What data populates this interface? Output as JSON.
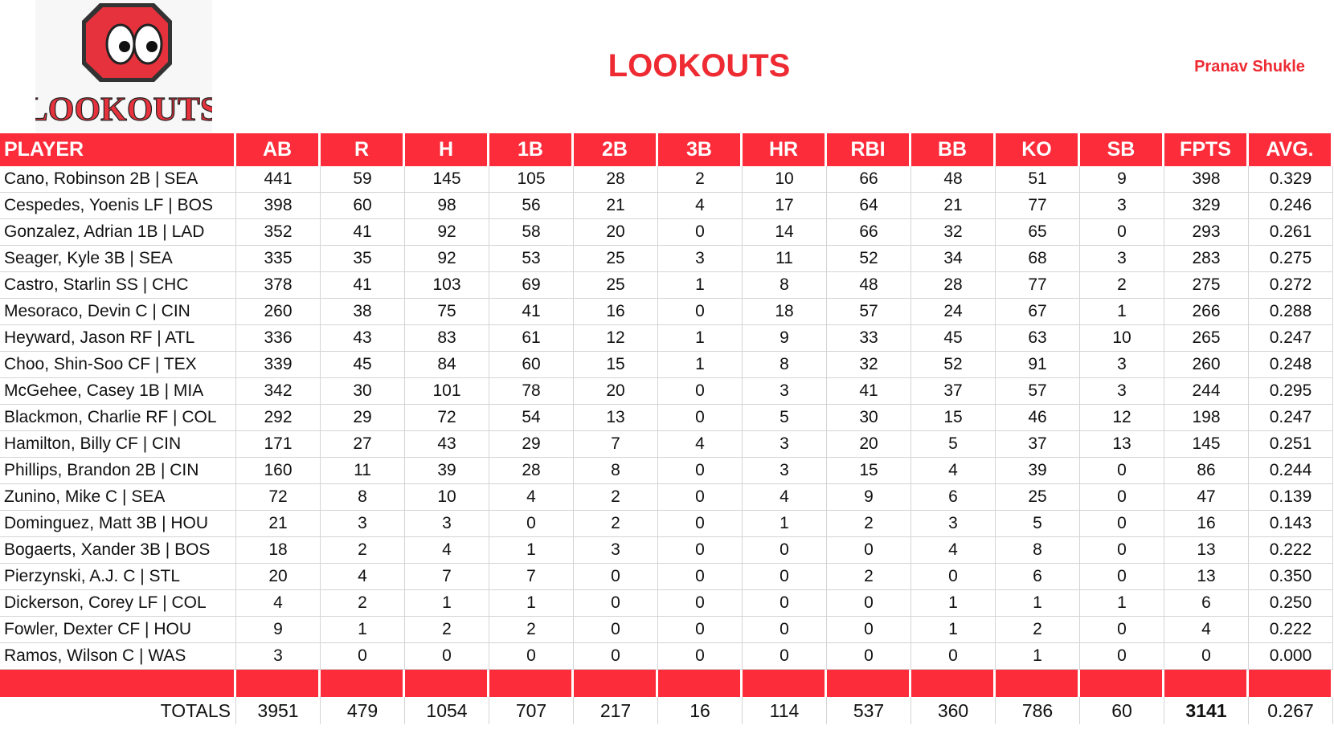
{
  "logo": {
    "text": "LOOKOUTS"
  },
  "header": {
    "title": "LOOKOUTS",
    "author": "Pranav Shukle"
  },
  "table": {
    "columns": [
      "PLAYER",
      "AB",
      "R",
      "H",
      "1B",
      "2B",
      "3B",
      "HR",
      "RBI",
      "BB",
      "KO",
      "SB",
      "FPTS",
      "AVG."
    ],
    "rows": [
      [
        "Cano, Robinson 2B | SEA",
        "441",
        "59",
        "145",
        "105",
        "28",
        "2",
        "10",
        "66",
        "48",
        "51",
        "9",
        "398",
        "0.329"
      ],
      [
        "Cespedes, Yoenis LF | BOS",
        "398",
        "60",
        "98",
        "56",
        "21",
        "4",
        "17",
        "64",
        "21",
        "77",
        "3",
        "329",
        "0.246"
      ],
      [
        "Gonzalez, Adrian 1B | LAD",
        "352",
        "41",
        "92",
        "58",
        "20",
        "0",
        "14",
        "66",
        "32",
        "65",
        "0",
        "293",
        "0.261"
      ],
      [
        "Seager, Kyle 3B | SEA",
        "335",
        "35",
        "92",
        "53",
        "25",
        "3",
        "11",
        "52",
        "34",
        "68",
        "3",
        "283",
        "0.275"
      ],
      [
        "Castro, Starlin SS | CHC",
        "378",
        "41",
        "103",
        "69",
        "25",
        "1",
        "8",
        "48",
        "28",
        "77",
        "2",
        "275",
        "0.272"
      ],
      [
        "Mesoraco, Devin C | CIN",
        "260",
        "38",
        "75",
        "41",
        "16",
        "0",
        "18",
        "57",
        "24",
        "67",
        "1",
        "266",
        "0.288"
      ],
      [
        "Heyward, Jason RF | ATL",
        "336",
        "43",
        "83",
        "61",
        "12",
        "1",
        "9",
        "33",
        "45",
        "63",
        "10",
        "265",
        "0.247"
      ],
      [
        "Choo, Shin-Soo CF | TEX",
        "339",
        "45",
        "84",
        "60",
        "15",
        "1",
        "8",
        "32",
        "52",
        "91",
        "3",
        "260",
        "0.248"
      ],
      [
        "McGehee, Casey 1B | MIA",
        "342",
        "30",
        "101",
        "78",
        "20",
        "0",
        "3",
        "41",
        "37",
        "57",
        "3",
        "244",
        "0.295"
      ],
      [
        "Blackmon, Charlie RF | COL",
        "292",
        "29",
        "72",
        "54",
        "13",
        "0",
        "5",
        "30",
        "15",
        "46",
        "12",
        "198",
        "0.247"
      ],
      [
        "Hamilton, Billy CF | CIN",
        "171",
        "27",
        "43",
        "29",
        "7",
        "4",
        "3",
        "20",
        "5",
        "37",
        "13",
        "145",
        "0.251"
      ],
      [
        "Phillips, Brandon 2B | CIN",
        "160",
        "11",
        "39",
        "28",
        "8",
        "0",
        "3",
        "15",
        "4",
        "39",
        "0",
        "86",
        "0.244"
      ],
      [
        "Zunino, Mike C | SEA",
        "72",
        "8",
        "10",
        "4",
        "2",
        "0",
        "4",
        "9",
        "6",
        "25",
        "0",
        "47",
        "0.139"
      ],
      [
        "Dominguez, Matt 3B | HOU",
        "21",
        "3",
        "3",
        "0",
        "2",
        "0",
        "1",
        "2",
        "3",
        "5",
        "0",
        "16",
        "0.143"
      ],
      [
        "Bogaerts, Xander 3B | BOS",
        "18",
        "2",
        "4",
        "1",
        "3",
        "0",
        "0",
        "0",
        "4",
        "8",
        "0",
        "13",
        "0.222"
      ],
      [
        "Pierzynski, A.J. C | STL",
        "20",
        "4",
        "7",
        "7",
        "0",
        "0",
        "0",
        "2",
        "0",
        "6",
        "0",
        "13",
        "0.350"
      ],
      [
        "Dickerson, Corey LF | COL",
        "4",
        "2",
        "1",
        "1",
        "0",
        "0",
        "0",
        "0",
        "1",
        "1",
        "1",
        "6",
        "0.250"
      ],
      [
        "Fowler, Dexter CF | HOU",
        "9",
        "1",
        "2",
        "2",
        "0",
        "0",
        "0",
        "0",
        "1",
        "2",
        "0",
        "4",
        "0.222"
      ],
      [
        "Ramos, Wilson C | WAS",
        "3",
        "0",
        "0",
        "0",
        "0",
        "0",
        "0",
        "0",
        "0",
        "1",
        "0",
        "0",
        "0.000"
      ]
    ],
    "totals": [
      "TOTALS",
      "3951",
      "479",
      "1054",
      "707",
      "217",
      "16",
      "114",
      "537",
      "360",
      "786",
      "60",
      "3141",
      "0.267"
    ]
  }
}
